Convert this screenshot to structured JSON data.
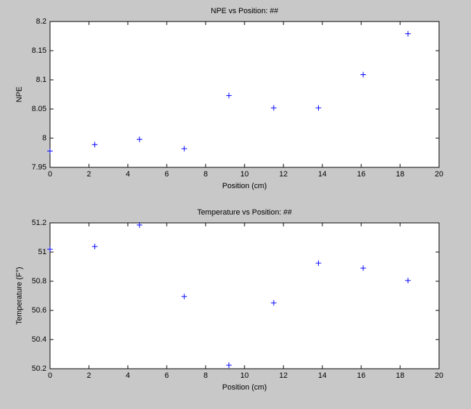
{
  "chart_data": [
    {
      "type": "scatter",
      "title": "NPE vs Position: ##",
      "xlabel": "Position (cm)",
      "ylabel": "NPE",
      "x": [
        0,
        2.3,
        4.6,
        6.9,
        9.2,
        11.5,
        13.8,
        16.1,
        18.4
      ],
      "values": [
        7.978,
        7.989,
        7.998,
        7.982,
        8.073,
        8.052,
        8.052,
        8.109,
        8.179
      ],
      "color": "#0000ff",
      "xlim": [
        0,
        20
      ],
      "xticks": [
        0,
        2,
        4,
        6,
        8,
        10,
        12,
        14,
        16,
        18,
        20
      ],
      "ylim": [
        7.95,
        8.2
      ],
      "yticks": [
        7.95,
        8,
        8.05,
        8.1,
        8.15,
        8.2
      ]
    },
    {
      "type": "scatter",
      "title": "Temperature vs Position: ##",
      "xlabel": "Position (cm)",
      "ylabel": "Temperature (F°)",
      "x": [
        0,
        2.3,
        4.6,
        6.9,
        9.2,
        11.5,
        13.8,
        16.1,
        18.4
      ],
      "values": [
        51.019,
        51.038,
        51.186,
        50.695,
        50.224,
        50.652,
        50.924,
        50.89,
        50.805
      ],
      "color": "#0000ff",
      "xlim": [
        0,
        20
      ],
      "xticks": [
        0,
        2,
        4,
        6,
        8,
        10,
        12,
        14,
        16,
        18,
        20
      ],
      "ylim": [
        50.2,
        51.2
      ],
      "yticks": [
        50.2,
        50.4,
        50.6,
        50.8,
        51,
        51.2
      ]
    }
  ]
}
